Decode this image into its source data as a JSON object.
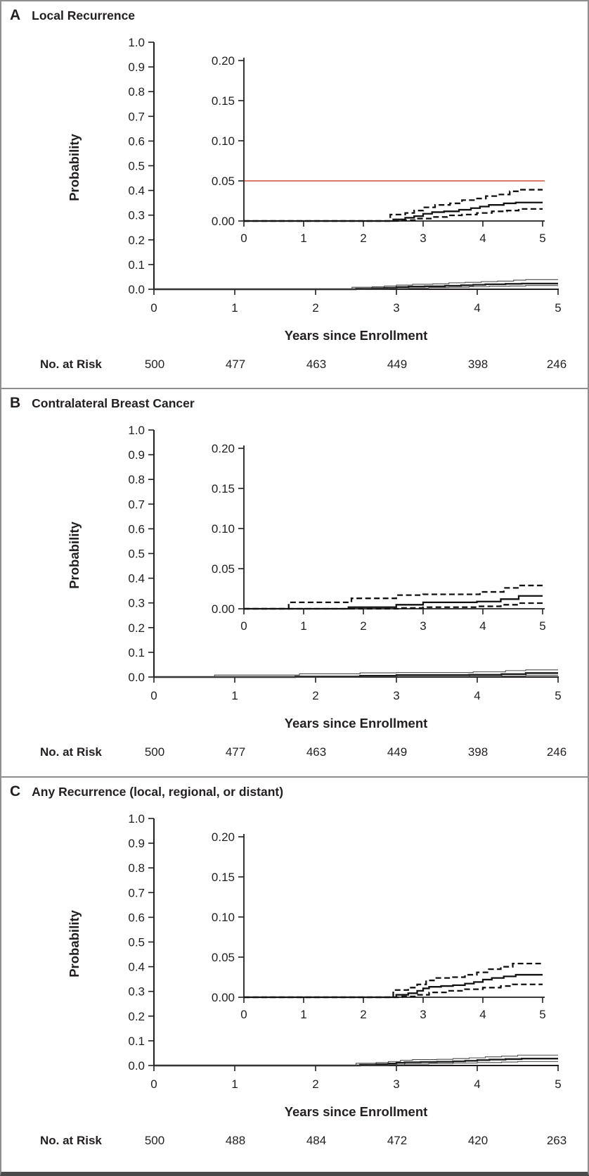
{
  "figure": {
    "panels": [
      {
        "letter": "A",
        "title": "Local Recurrence",
        "ylabel": "Probability",
        "xlabel": "Years since Enrollment",
        "at_risk_label": "No. at Risk",
        "at_risk": [
          "500",
          "477",
          "463",
          "449",
          "398",
          "246"
        ]
      },
      {
        "letter": "B",
        "title": "Contralateral Breast Cancer",
        "ylabel": "Probability",
        "xlabel": "Years since Enrollment",
        "at_risk_label": "No. at Risk",
        "at_risk": [
          "500",
          "477",
          "463",
          "449",
          "398",
          "246"
        ]
      },
      {
        "letter": "C",
        "title": "Any Recurrence (local, regional, or distant)",
        "ylabel": "Probability",
        "xlabel": "Years since Enrollment",
        "at_risk_label": "No. at Risk",
        "at_risk": [
          "500",
          "488",
          "484",
          "472",
          "420",
          "263"
        ]
      }
    ]
  },
  "chart_data": [
    {
      "type": "line",
      "panel": "A",
      "title": "Local Recurrence",
      "xlabel": "Years since Enrollment",
      "ylabel": "Probability",
      "main_axis": {
        "xlim": [
          0,
          5
        ],
        "ylim": [
          0,
          1.0
        ],
        "xticks": [
          0,
          1,
          2,
          3,
          4,
          5
        ],
        "yticks": [
          "0.0",
          "0.1",
          "0.2",
          "0.3",
          "0.4",
          "0.5",
          "0.6",
          "0.7",
          "0.8",
          "0.9",
          "1.0"
        ]
      },
      "inset_axis": {
        "xlim": [
          0,
          5
        ],
        "ylim": [
          0,
          0.2
        ],
        "xticks": [
          0,
          1,
          2,
          3,
          4,
          5
        ],
        "yticks": [
          "0.00",
          "0.05",
          "0.10",
          "0.15",
          "0.20"
        ]
      },
      "reference_line": {
        "y": 0.05,
        "color": "#cf5137"
      },
      "series": [
        {
          "name": "cumulative-incidence",
          "style": "solid",
          "points": [
            [
              0,
              0
            ],
            [
              2.5,
              0.002
            ],
            [
              2.7,
              0.004
            ],
            [
              2.85,
              0.006
            ],
            [
              3.0,
              0.009
            ],
            [
              3.15,
              0.011
            ],
            [
              3.35,
              0.012
            ],
            [
              3.6,
              0.014
            ],
            [
              3.8,
              0.016
            ],
            [
              3.95,
              0.018
            ],
            [
              4.1,
              0.02
            ],
            [
              4.35,
              0.022
            ],
            [
              4.55,
              0.023
            ]
          ]
        },
        {
          "name": "upper-confidence-band",
          "style": "dashed",
          "points": [
            [
              0,
              0
            ],
            [
              2.45,
              0.008
            ],
            [
              2.7,
              0.01
            ],
            [
              2.85,
              0.013
            ],
            [
              3.0,
              0.017
            ],
            [
              3.2,
              0.02
            ],
            [
              3.45,
              0.022
            ],
            [
              3.65,
              0.026
            ],
            [
              3.85,
              0.028
            ],
            [
              4.05,
              0.031
            ],
            [
              4.25,
              0.033
            ],
            [
              4.45,
              0.037
            ],
            [
              4.6,
              0.039
            ]
          ]
        },
        {
          "name": "lower-confidence-band",
          "style": "dashed",
          "points": [
            [
              0,
              0
            ],
            [
              2.6,
              0.001
            ],
            [
              2.9,
              0.003
            ],
            [
              3.15,
              0.005
            ],
            [
              3.4,
              0.007
            ],
            [
              3.65,
              0.008
            ],
            [
              3.9,
              0.01
            ],
            [
              4.15,
              0.012
            ],
            [
              4.4,
              0.013
            ],
            [
              4.6,
              0.015
            ]
          ]
        }
      ],
      "at_risk": {
        "label": "No. at Risk",
        "times": [
          0,
          1,
          2,
          3,
          4,
          5
        ],
        "counts": [
          500,
          477,
          463,
          449,
          398,
          246
        ]
      }
    },
    {
      "type": "line",
      "panel": "B",
      "title": "Contralateral Breast Cancer",
      "xlabel": "Years since Enrollment",
      "ylabel": "Probability",
      "main_axis": {
        "xlim": [
          0,
          5
        ],
        "ylim": [
          0,
          1.0
        ],
        "xticks": [
          0,
          1,
          2,
          3,
          4,
          5
        ],
        "yticks": [
          "0.0",
          "0.1",
          "0.2",
          "0.3",
          "0.4",
          "0.5",
          "0.6",
          "0.7",
          "0.8",
          "0.9",
          "1.0"
        ]
      },
      "inset_axis": {
        "xlim": [
          0,
          5
        ],
        "ylim": [
          0,
          0.2
        ],
        "xticks": [
          0,
          1,
          2,
          3,
          4,
          5
        ],
        "yticks": [
          "0.00",
          "0.05",
          "0.10",
          "0.15",
          "0.20"
        ]
      },
      "reference_line": null,
      "series": [
        {
          "name": "cumulative-incidence",
          "style": "solid",
          "points": [
            [
              0,
              0
            ],
            [
              1.75,
              0.002
            ],
            [
              2.55,
              0.005
            ],
            [
              3.0,
              0.008
            ],
            [
              3.9,
              0.009
            ],
            [
              4.3,
              0.012
            ],
            [
              4.6,
              0.016
            ]
          ]
        },
        {
          "name": "upper-confidence-band",
          "style": "dashed",
          "points": [
            [
              0,
              0
            ],
            [
              0.75,
              0.008
            ],
            [
              1.8,
              0.013
            ],
            [
              2.55,
              0.017
            ],
            [
              3.0,
              0.018
            ],
            [
              3.95,
              0.021
            ],
            [
              4.35,
              0.026
            ],
            [
              4.6,
              0.029
            ]
          ]
        },
        {
          "name": "lower-confidence-band",
          "style": "dashed",
          "points": [
            [
              0,
              0
            ],
            [
              2.6,
              0.001
            ],
            [
              3.0,
              0.002
            ],
            [
              3.9,
              0.003
            ],
            [
              4.3,
              0.005
            ],
            [
              4.6,
              0.007
            ]
          ]
        }
      ],
      "at_risk": {
        "label": "No. at Risk",
        "times": [
          0,
          1,
          2,
          3,
          4,
          5
        ],
        "counts": [
          500,
          477,
          463,
          449,
          398,
          246
        ]
      }
    },
    {
      "type": "line",
      "panel": "C",
      "title": "Any Recurrence (local, regional, or distant)",
      "xlabel": "Years since Enrollment",
      "ylabel": "Probability",
      "main_axis": {
        "xlim": [
          0,
          5
        ],
        "ylim": [
          0,
          1.0
        ],
        "xticks": [
          0,
          1,
          2,
          3,
          4,
          5
        ],
        "yticks": [
          "0.0",
          "0.1",
          "0.2",
          "0.3",
          "0.4",
          "0.5",
          "0.6",
          "0.7",
          "0.8",
          "0.9",
          "1.0"
        ]
      },
      "inset_axis": {
        "xlim": [
          0,
          5
        ],
        "ylim": [
          0,
          0.2
        ],
        "xticks": [
          0,
          1,
          2,
          3,
          4,
          5
        ],
        "yticks": [
          "0.00",
          "0.05",
          "0.10",
          "0.15",
          "0.20"
        ]
      },
      "reference_line": null,
      "series": [
        {
          "name": "cumulative-incidence",
          "style": "solid",
          "points": [
            [
              0,
              0
            ],
            [
              2.55,
              0.003
            ],
            [
              2.75,
              0.005
            ],
            [
              2.9,
              0.008
            ],
            [
              3.0,
              0.011
            ],
            [
              3.1,
              0.013
            ],
            [
              3.3,
              0.014
            ],
            [
              3.5,
              0.015
            ],
            [
              3.7,
              0.017
            ],
            [
              3.85,
              0.019
            ],
            [
              4.0,
              0.022
            ],
            [
              4.15,
              0.024
            ],
            [
              4.35,
              0.026
            ],
            [
              4.55,
              0.028
            ]
          ]
        },
        {
          "name": "upper-confidence-band",
          "style": "dashed",
          "points": [
            [
              0,
              0
            ],
            [
              2.5,
              0.009
            ],
            [
              2.75,
              0.012
            ],
            [
              2.9,
              0.016
            ],
            [
              3.05,
              0.021
            ],
            [
              3.2,
              0.024
            ],
            [
              3.5,
              0.025
            ],
            [
              3.7,
              0.028
            ],
            [
              3.9,
              0.031
            ],
            [
              4.1,
              0.035
            ],
            [
              4.3,
              0.038
            ],
            [
              4.5,
              0.042
            ]
          ]
        },
        {
          "name": "lower-confidence-band",
          "style": "dashed",
          "points": [
            [
              0,
              0
            ],
            [
              2.65,
              0.001
            ],
            [
              2.9,
              0.003
            ],
            [
              3.1,
              0.006
            ],
            [
              3.4,
              0.008
            ],
            [
              3.7,
              0.01
            ],
            [
              4.0,
              0.012
            ],
            [
              4.3,
              0.014
            ],
            [
              4.5,
              0.016
            ]
          ]
        }
      ],
      "at_risk": {
        "label": "No. at Risk",
        "times": [
          0,
          1,
          2,
          3,
          4,
          5
        ],
        "counts": [
          500,
          488,
          484,
          472,
          420,
          263
        ]
      }
    }
  ]
}
